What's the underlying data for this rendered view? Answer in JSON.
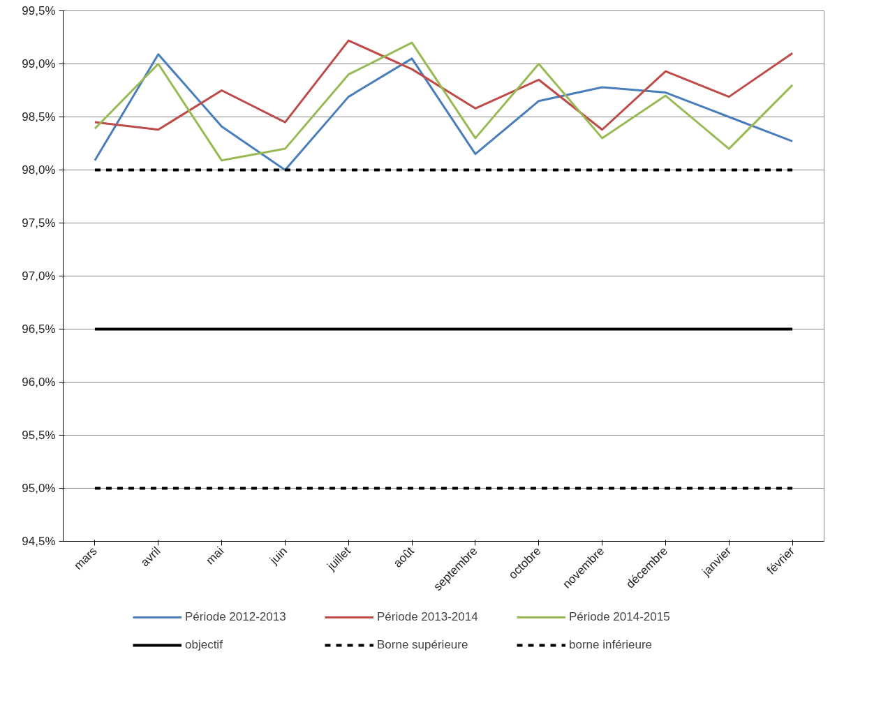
{
  "chart_data": {
    "type": "line",
    "categories": [
      "mars",
      "avril",
      "mai",
      "juin",
      "juillet",
      "août",
      "septembre",
      "octobre",
      "novembre",
      "décembre",
      "janvier",
      "février"
    ],
    "series": [
      {
        "name": "Période 2012-2013",
        "color": "#4a7ebb",
        "values": [
          98.09,
          99.09,
          98.41,
          98.0,
          98.69,
          99.05,
          98.15,
          98.65,
          98.78,
          98.73,
          98.5,
          98.27
        ]
      },
      {
        "name": "Période 2013-2014",
        "color": "#be4b48",
        "values": [
          98.45,
          98.38,
          98.75,
          98.45,
          99.22,
          98.95,
          98.58,
          98.85,
          98.38,
          98.93,
          98.69,
          99.1
        ]
      },
      {
        "name": "Période 2014-2015",
        "color": "#98b954",
        "values": [
          98.39,
          99.0,
          98.09,
          98.2,
          98.9,
          99.2,
          98.3,
          99.0,
          98.3,
          98.7,
          98.2,
          98.8
        ]
      },
      {
        "name": "objectif",
        "color": "#000000",
        "line_style": "solid",
        "values": [
          96.5,
          96.5,
          96.5,
          96.5,
          96.5,
          96.5,
          96.5,
          96.5,
          96.5,
          96.5,
          96.5,
          96.5
        ]
      },
      {
        "name": "Borne supérieure",
        "color": "#000000",
        "line_style": "dashed",
        "values": [
          98.0,
          98.0,
          98.0,
          98.0,
          98.0,
          98.0,
          98.0,
          98.0,
          98.0,
          98.0,
          98.0,
          98.0
        ]
      },
      {
        "name": "borne inférieure",
        "color": "#000000",
        "line_style": "dashed",
        "values": [
          95.0,
          95.0,
          95.0,
          95.0,
          95.0,
          95.0,
          95.0,
          95.0,
          95.0,
          95.0,
          95.0,
          95.0
        ]
      }
    ],
    "ylim": [
      94.5,
      99.5
    ],
    "yticks": [
      {
        "value": 94.5,
        "label": "94,5%"
      },
      {
        "value": 95.0,
        "label": "95,0%"
      },
      {
        "value": 95.5,
        "label": "95,5%"
      },
      {
        "value": 96.0,
        "label": "96,0%"
      },
      {
        "value": 96.5,
        "label": "96,5%"
      },
      {
        "value": 97.0,
        "label": "97,0%"
      },
      {
        "value": 97.5,
        "label": "97,5%"
      },
      {
        "value": 98.0,
        "label": "98,0%"
      },
      {
        "value": 98.5,
        "label": "98,5%"
      },
      {
        "value": 99.0,
        "label": "99,0%"
      },
      {
        "value": 99.5,
        "label": "99,5%"
      }
    ],
    "grid": "y",
    "legend": "bottom",
    "marker": "none",
    "line_style": "solid"
  }
}
